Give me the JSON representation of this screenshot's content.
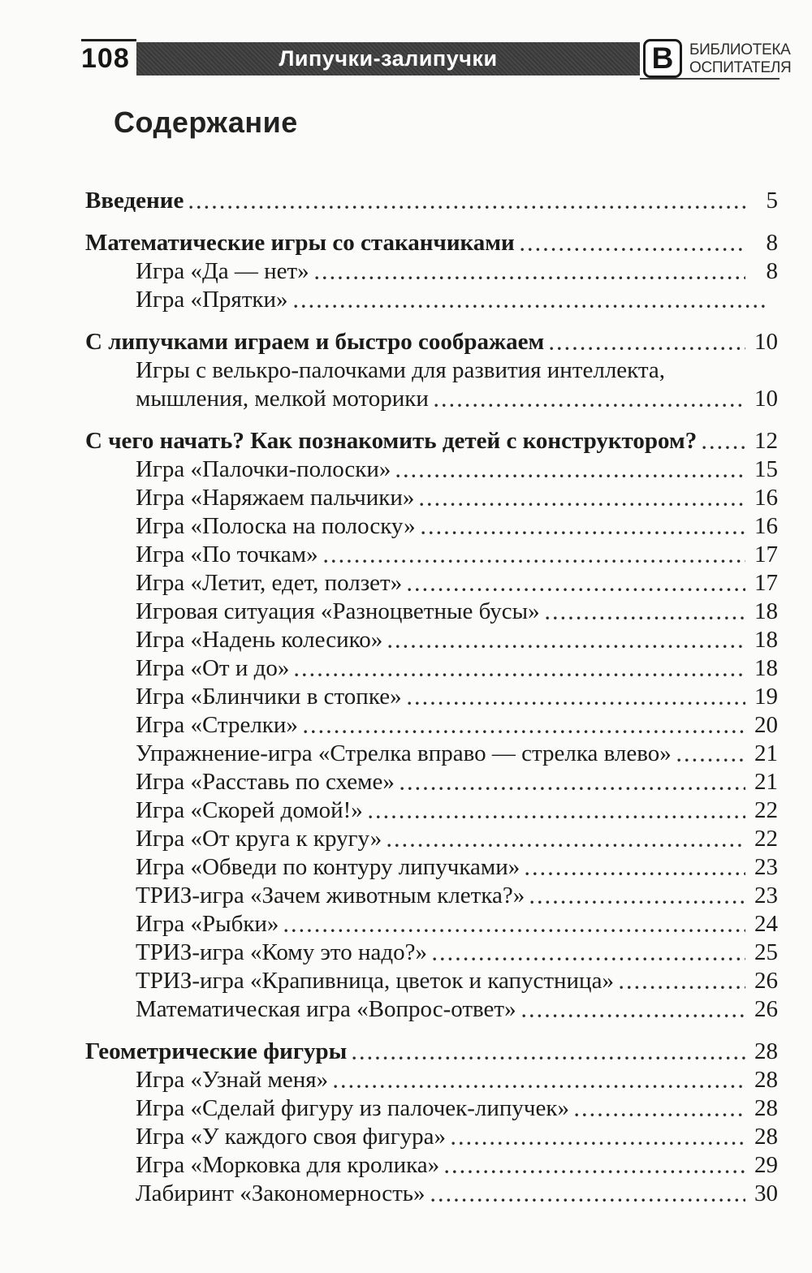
{
  "header": {
    "page_number": "108",
    "band_title": "Липучки-залипучки",
    "logo": {
      "letter": "В",
      "line1": "БИБЛИОТЕКА",
      "line2": "ОСПИТАТЕЛЯ"
    }
  },
  "title": "Содержание",
  "colors": {
    "band": "#3d3d3d",
    "text": "#1b1b1b",
    "paper": "#fbfbf9"
  },
  "toc": {
    "entries": [
      {
        "text": "Введение",
        "page": "5",
        "bold": true,
        "indent": 0,
        "gap": false,
        "leader": true
      },
      {
        "text": "Математические игры со стаканчиками",
        "page": "8",
        "bold": true,
        "indent": 0,
        "gap": true,
        "leader": true
      },
      {
        "text": "Игра «Да — нет»",
        "page": "8",
        "bold": false,
        "indent": 1,
        "gap": false,
        "leader": true
      },
      {
        "text": "Игра «Прятки»",
        "page": "",
        "bold": false,
        "indent": 1,
        "gap": false,
        "leader": true
      },
      {
        "text": "С липучками играем и быстро соображаем",
        "page": "10",
        "bold": true,
        "indent": 0,
        "gap": true,
        "leader": true
      },
      {
        "text": "Игры с велькро-палочками для развития интеллекта,",
        "page": "",
        "bold": false,
        "indent": 1,
        "gap": false,
        "leader": false
      },
      {
        "text": "мышления, мелкой моторики",
        "page": "10",
        "bold": false,
        "indent": 1,
        "gap": false,
        "leader": true
      },
      {
        "text": "С чего начать? Как познакомить детей с конструктором?",
        "page": "12",
        "bold": true,
        "indent": 0,
        "gap": true,
        "leader": true
      },
      {
        "text": "Игра «Палочки-полоски»",
        "page": "15",
        "bold": false,
        "indent": 1,
        "gap": false,
        "leader": true
      },
      {
        "text": "Игра «Наряжаем пальчики»",
        "page": "16",
        "bold": false,
        "indent": 1,
        "gap": false,
        "leader": true
      },
      {
        "text": "Игра «Полоска на полоску»",
        "page": "16",
        "bold": false,
        "indent": 1,
        "gap": false,
        "leader": true
      },
      {
        "text": "Игра «По точкам»",
        "page": "17",
        "bold": false,
        "indent": 1,
        "gap": false,
        "leader": true
      },
      {
        "text": "Игра «Летит, едет, ползет»",
        "page": "17",
        "bold": false,
        "indent": 1,
        "gap": false,
        "leader": true
      },
      {
        "text": "Игровая ситуация «Разноцветные бусы»",
        "page": "18",
        "bold": false,
        "indent": 1,
        "gap": false,
        "leader": true
      },
      {
        "text": "Игра «Надень колесико»",
        "page": "18",
        "bold": false,
        "indent": 1,
        "gap": false,
        "leader": true
      },
      {
        "text": "Игра «От и до»",
        "page": "18",
        "bold": false,
        "indent": 1,
        "gap": false,
        "leader": true
      },
      {
        "text": "Игра «Блинчики в стопке»",
        "page": "19",
        "bold": false,
        "indent": 1,
        "gap": false,
        "leader": true
      },
      {
        "text": "Игра «Стрелки»",
        "page": "20",
        "bold": false,
        "indent": 1,
        "gap": false,
        "leader": true
      },
      {
        "text": "Упражнение-игра «Стрелка вправо — стрелка влево»",
        "page": "21",
        "bold": false,
        "indent": 1,
        "gap": false,
        "leader": true
      },
      {
        "text": "Игра «Расставь по схеме»",
        "page": "21",
        "bold": false,
        "indent": 1,
        "gap": false,
        "leader": true
      },
      {
        "text": "Игра «Скорей домой!»",
        "page": "22",
        "bold": false,
        "indent": 1,
        "gap": false,
        "leader": true
      },
      {
        "text": "Игра «От круга к кругу»",
        "page": "22",
        "bold": false,
        "indent": 1,
        "gap": false,
        "leader": true
      },
      {
        "text": "Игра «Обведи по контуру липучками»",
        "page": "23",
        "bold": false,
        "indent": 1,
        "gap": false,
        "leader": true
      },
      {
        "text": "ТРИЗ-игра «Зачем животным клетка?»",
        "page": "23",
        "bold": false,
        "indent": 1,
        "gap": false,
        "leader": true
      },
      {
        "text": "Игра «Рыбки»",
        "page": "24",
        "bold": false,
        "indent": 1,
        "gap": false,
        "leader": true
      },
      {
        "text": "ТРИЗ-игра «Кому это надо?»",
        "page": "25",
        "bold": false,
        "indent": 1,
        "gap": false,
        "leader": true
      },
      {
        "text": "ТРИЗ-игра «Крапивница, цветок и капустница»",
        "page": "26",
        "bold": false,
        "indent": 1,
        "gap": false,
        "leader": true
      },
      {
        "text": "Математическая игра «Вопрос-ответ»",
        "page": "26",
        "bold": false,
        "indent": 1,
        "gap": false,
        "leader": true
      },
      {
        "text": "Геометрические фигуры",
        "page": "28",
        "bold": true,
        "indent": 0,
        "gap": true,
        "leader": true
      },
      {
        "text": "Игра «Узнай меня»",
        "page": "28",
        "bold": false,
        "indent": 1,
        "gap": false,
        "leader": true
      },
      {
        "text": "Игра «Сделай фигуру из палочек-липучек»",
        "page": "28",
        "bold": false,
        "indent": 1,
        "gap": false,
        "leader": true
      },
      {
        "text": "Игра «У каждого своя фигура»",
        "page": "28",
        "bold": false,
        "indent": 1,
        "gap": false,
        "leader": true
      },
      {
        "text": "Игра «Морковка для кролика»",
        "page": "29",
        "bold": false,
        "indent": 1,
        "gap": false,
        "leader": true
      },
      {
        "text": "Лабиринт «Закономерность»",
        "page": "30",
        "bold": false,
        "indent": 1,
        "gap": false,
        "leader": true
      }
    ]
  }
}
